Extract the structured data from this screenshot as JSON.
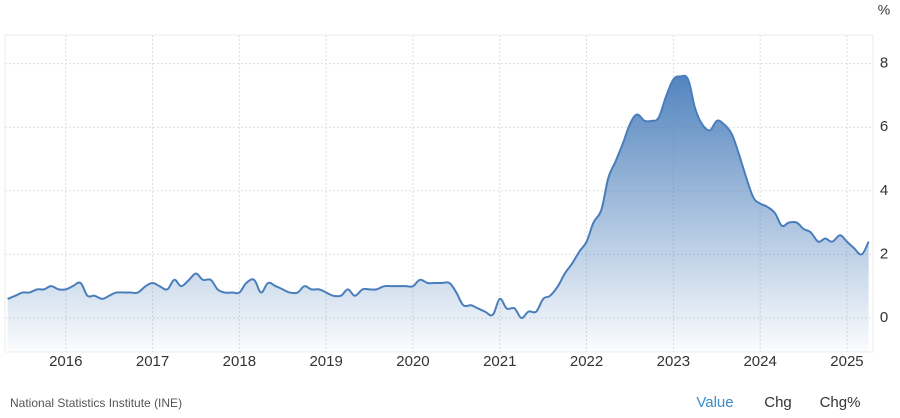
{
  "chart_data": {
    "type": "area",
    "unit": "%",
    "source": "National Statistics Institute (INE)",
    "tabs": [
      "Value",
      "Chg",
      "Chg%"
    ],
    "color": "#4a7ebb",
    "grid": true,
    "xlim": [
      2015.3,
      2025.3
    ],
    "xticks": [
      2016,
      2017,
      2018,
      2019,
      2020,
      2021,
      2022,
      2023,
      2024,
      2025
    ],
    "ylim": [
      -1.07,
      8.9
    ],
    "yticks": [
      0,
      2,
      4,
      6,
      8
    ],
    "x": [
      2015.33,
      2015.42,
      2015.5,
      2015.58,
      2015.67,
      2015.75,
      2015.83,
      2015.92,
      2016.0,
      2016.08,
      2016.17,
      2016.25,
      2016.33,
      2016.42,
      2016.5,
      2016.58,
      2016.67,
      2016.75,
      2016.83,
      2016.92,
      2017.0,
      2017.08,
      2017.17,
      2017.25,
      2017.33,
      2017.42,
      2017.5,
      2017.58,
      2017.67,
      2017.75,
      2017.83,
      2017.92,
      2018.0,
      2018.08,
      2018.17,
      2018.25,
      2018.33,
      2018.42,
      2018.5,
      2018.58,
      2018.67,
      2018.75,
      2018.83,
      2018.92,
      2019.0,
      2019.08,
      2019.17,
      2019.25,
      2019.33,
      2019.42,
      2019.5,
      2019.58,
      2019.67,
      2019.75,
      2019.83,
      2019.92,
      2020.0,
      2020.08,
      2020.17,
      2020.25,
      2020.33,
      2020.42,
      2020.5,
      2020.58,
      2020.67,
      2020.75,
      2020.83,
      2020.92,
      2021.0,
      2021.08,
      2021.17,
      2021.25,
      2021.33,
      2021.42,
      2021.5,
      2021.58,
      2021.67,
      2021.75,
      2021.83,
      2021.92,
      2022.0,
      2022.08,
      2022.17,
      2022.25,
      2022.33,
      2022.42,
      2022.5,
      2022.58,
      2022.67,
      2022.75,
      2022.83,
      2022.92,
      2023.0,
      2023.08,
      2023.17,
      2023.25,
      2023.33,
      2023.42,
      2023.5,
      2023.58,
      2023.67,
      2023.75,
      2023.83,
      2023.92,
      2024.0,
      2024.08,
      2024.17,
      2024.25,
      2024.33,
      2024.42,
      2024.5,
      2024.58,
      2024.67,
      2024.75,
      2024.83,
      2024.92,
      2025.0,
      2025.08,
      2025.17,
      2025.25
    ],
    "values": [
      0.6,
      0.7,
      0.8,
      0.8,
      0.9,
      0.9,
      1.0,
      0.9,
      0.9,
      1.0,
      1.1,
      0.7,
      0.7,
      0.6,
      0.7,
      0.8,
      0.8,
      0.8,
      0.8,
      1.0,
      1.1,
      1.0,
      0.9,
      1.2,
      1.0,
      1.2,
      1.4,
      1.2,
      1.2,
      0.9,
      0.8,
      0.8,
      0.8,
      1.1,
      1.2,
      0.8,
      1.1,
      1.0,
      0.9,
      0.8,
      0.8,
      1.0,
      0.9,
      0.9,
      0.8,
      0.7,
      0.7,
      0.9,
      0.7,
      0.9,
      0.9,
      0.9,
      1.0,
      1.0,
      1.0,
      1.0,
      1.0,
      1.2,
      1.1,
      1.1,
      1.1,
      1.1,
      0.8,
      0.4,
      0.4,
      0.3,
      0.2,
      0.1,
      0.6,
      0.3,
      0.3,
      0.0,
      0.2,
      0.2,
      0.6,
      0.7,
      1.0,
      1.4,
      1.7,
      2.1,
      2.4,
      3.0,
      3.4,
      4.4,
      4.9,
      5.5,
      6.1,
      6.4,
      6.2,
      6.2,
      6.3,
      7.0,
      7.5,
      7.6,
      7.5,
      6.6,
      6.1,
      5.9,
      6.2,
      6.1,
      5.8,
      5.2,
      4.5,
      3.8,
      3.6,
      3.5,
      3.3,
      2.9,
      3.0,
      3.0,
      2.8,
      2.7,
      2.4,
      2.5,
      2.4,
      2.6,
      2.4,
      2.2,
      2.0,
      2.4
    ]
  }
}
